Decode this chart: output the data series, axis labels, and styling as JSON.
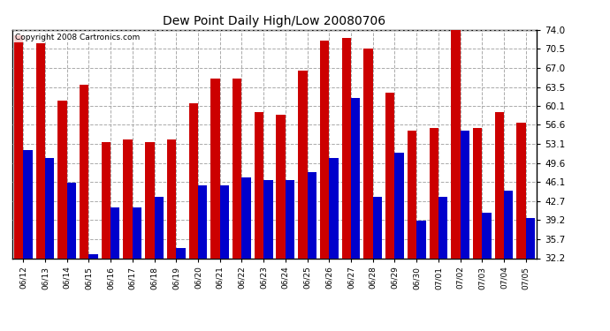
{
  "title": "Dew Point Daily High/Low 20080706",
  "copyright": "Copyright 2008 Cartronics.com",
  "categories": [
    "06/12",
    "06/13",
    "06/14",
    "06/15",
    "06/16",
    "06/17",
    "06/18",
    "06/19",
    "06/20",
    "06/21",
    "06/22",
    "06/23",
    "06/24",
    "06/25",
    "06/26",
    "06/27",
    "06/28",
    "06/29",
    "06/30",
    "07/01",
    "07/02",
    "07/03",
    "07/04",
    "07/05"
  ],
  "highs": [
    73.0,
    71.5,
    61.0,
    64.0,
    53.5,
    54.0,
    53.5,
    54.0,
    60.5,
    65.0,
    65.0,
    59.0,
    58.5,
    66.5,
    72.0,
    72.5,
    70.5,
    62.5,
    55.5,
    56.0,
    75.0,
    56.0,
    59.0,
    57.0
  ],
  "lows": [
    52.0,
    50.5,
    46.0,
    33.0,
    41.5,
    41.5,
    43.5,
    34.0,
    45.5,
    45.5,
    47.0,
    46.5,
    46.5,
    48.0,
    50.5,
    61.5,
    43.5,
    51.5,
    39.0,
    43.5,
    55.5,
    40.5,
    44.5,
    39.5
  ],
  "high_color": "#cc0000",
  "low_color": "#0000cc",
  "background_color": "#ffffff",
  "grid_color": "#aaaaaa",
  "yticks": [
    32.2,
    35.7,
    39.2,
    42.7,
    46.1,
    49.6,
    53.1,
    56.6,
    60.1,
    63.5,
    67.0,
    70.5,
    74.0
  ],
  "ymin": 32.2,
  "ymax": 74.0,
  "bar_width": 0.42
}
